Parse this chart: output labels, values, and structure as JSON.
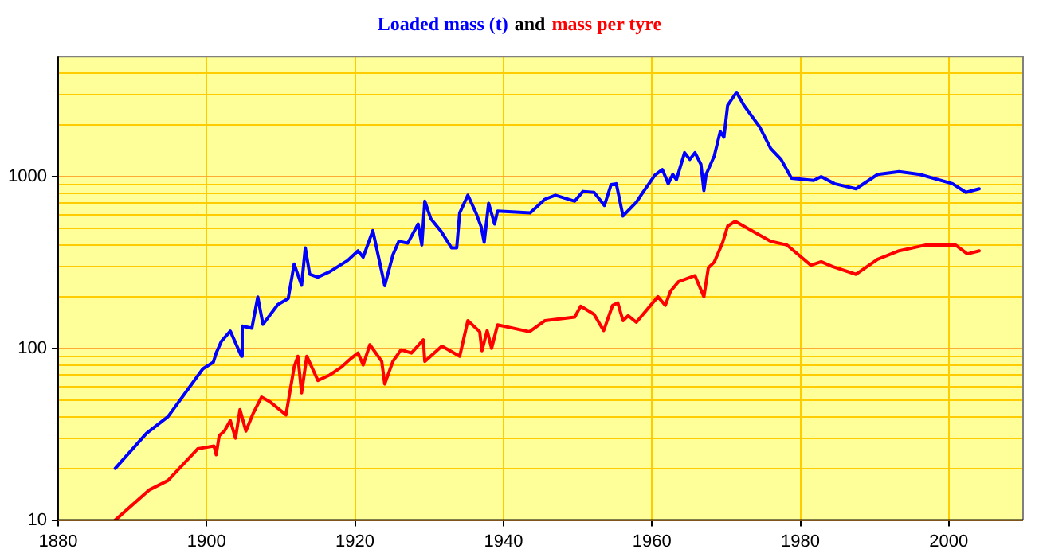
{
  "chart_data": {
    "type": "line",
    "annotations": [
      "and"
    ],
    "xlim": [
      1880,
      2010
    ],
    "xticks": [
      1880,
      1900,
      1920,
      1940,
      1960,
      1980,
      2000
    ],
    "ylim": [
      10,
      5000
    ],
    "log": "y",
    "yticks": [
      10,
      {
        "value": 20,
        "label": null
      },
      {
        "value": 30,
        "label": null
      },
      {
        "value": 40,
        "label": null
      },
      {
        "value": 50,
        "label": null
      },
      {
        "value": 60,
        "label": null
      },
      {
        "value": 70,
        "label": null
      },
      {
        "value": 80,
        "label": null
      },
      {
        "value": 90,
        "label": null
      },
      100,
      {
        "value": 200,
        "label": null
      },
      {
        "value": 300,
        "label": null
      },
      {
        "value": 400,
        "label": null
      },
      {
        "value": 500,
        "label": null
      },
      {
        "value": 600,
        "label": null
      },
      {
        "value": 700,
        "label": null
      },
      {
        "value": 800,
        "label": null
      },
      {
        "value": 900,
        "label": null
      },
      1000,
      {
        "value": 2000,
        "label": null
      },
      {
        "value": 3000,
        "label": null
      },
      {
        "value": 4000,
        "label": null
      },
      {
        "value": 5000,
        "label": null
      }
    ],
    "grid": true,
    "legend": false,
    "marker": "none",
    "line_style": "solid",
    "series": [
      {
        "name": "Loaded mass (t)",
        "color": "#0000ff",
        "x": [
          1887.7,
          1891.9,
          1894.8,
          1899.5,
          1900.9,
          1901.3,
          1902,
          1903.2,
          1904.7,
          1904.8,
          1906.1,
          1906.9,
          1907.6,
          1909.6,
          1911,
          1911.8,
          1912.8,
          1913.3,
          1913.9,
          1915,
          1916.6,
          1919,
          1920.4,
          1921.1,
          1922.4,
          1924,
          1925.1,
          1925.9,
          1927.1,
          1928.5,
          1929,
          1929.4,
          1930.2,
          1931.6,
          1933,
          1933.7,
          1934.1,
          1935.2,
          1936.3,
          1937,
          1937.4,
          1938,
          1938.8,
          1939.2,
          1943.6,
          1945.6,
          1947,
          1949.6,
          1950.7,
          1952.2,
          1953.6,
          1954.5,
          1955.2,
          1956.1,
          1957.9,
          1958.7,
          1960.4,
          1961.4,
          1962.2,
          1962.8,
          1963.3,
          1964.4,
          1965.1,
          1965.8,
          1966.6,
          1967,
          1967.3,
          1968.4,
          1969.2,
          1969.7,
          1970.2,
          1971.4,
          1972.4,
          1974.5,
          1976,
          1977.4,
          1978.8,
          1981.8,
          1982.8,
          1984.6,
          1987.5,
          1990.4,
          1993.3,
          1996.1,
          2000.5,
          2002.3,
          2004.1
        ],
        "values": [
          20,
          32,
          40,
          76,
          83,
          94,
          110,
          126,
          90,
          135,
          131,
          199,
          138,
          180,
          195,
          310,
          233,
          385,
          270,
          260,
          280,
          325,
          370,
          340,
          485,
          232,
          350,
          420,
          410,
          530,
          400,
          720,
          570,
          480,
          385,
          385,
          615,
          780,
          615,
          510,
          415,
          700,
          530,
          630,
          615,
          740,
          780,
          720,
          820,
          810,
          680,
          900,
          910,
          590,
          710,
          800,
          1020,
          1100,
          910,
          1030,
          960,
          1380,
          1260,
          1380,
          1180,
          830,
          1030,
          1320,
          1830,
          1700,
          2600,
          3100,
          2600,
          1950,
          1460,
          1260,
          980,
          950,
          1000,
          910,
          850,
          1030,
          1070,
          1030,
          910,
          810,
          850
        ]
      },
      {
        "name": "mass per tyre",
        "color": "#ff0000",
        "x": [
          1887.7,
          1892.3,
          1894.8,
          1898.8,
          1901,
          1901.3,
          1901.7,
          1902.4,
          1903.2,
          1903.9,
          1904.5,
          1905.3,
          1906.3,
          1907.4,
          1908.5,
          1910.7,
          1911.8,
          1912.3,
          1912.8,
          1913.5,
          1915,
          1916.6,
          1918.2,
          1919.4,
          1920.4,
          1921.1,
          1922,
          1923.6,
          1924,
          1925.1,
          1926.2,
          1927.6,
          1929.2,
          1929.4,
          1931.7,
          1934.1,
          1935.2,
          1936.8,
          1937.1,
          1937.8,
          1938.4,
          1939.2,
          1943.5,
          1945.6,
          1949.6,
          1950.4,
          1952.2,
          1953.5,
          1954.7,
          1955.4,
          1956.1,
          1956.8,
          1957.9,
          1960.8,
          1961.8,
          1962.5,
          1963.6,
          1965.8,
          1967,
          1967.6,
          1968.4,
          1969.5,
          1970.2,
          1971.2,
          1973.8,
          1976,
          1978.2,
          1981.4,
          1982.8,
          1984.3,
          1987.5,
          1990.4,
          1993.3,
          1996.9,
          2000.9,
          2002.5,
          2004.1
        ],
        "values": [
          10,
          15,
          17,
          26,
          27,
          24,
          31,
          33,
          38,
          30,
          44,
          33,
          42,
          52,
          49,
          41,
          78,
          90,
          55,
          90,
          65,
          70,
          78,
          87,
          94,
          80,
          105,
          84,
          62,
          84,
          98,
          94,
          112,
          84,
          103,
          90,
          145,
          125,
          97,
          127,
          100,
          137,
          125,
          145,
          152,
          176,
          158,
          127,
          178,
          184,
          145,
          155,
          142,
          200,
          178,
          215,
          245,
          265,
          200,
          295,
          318,
          410,
          515,
          550,
          475,
          420,
          400,
          305,
          320,
          300,
          270,
          330,
          370,
          400,
          400,
          355,
          370
        ]
      }
    ]
  }
}
